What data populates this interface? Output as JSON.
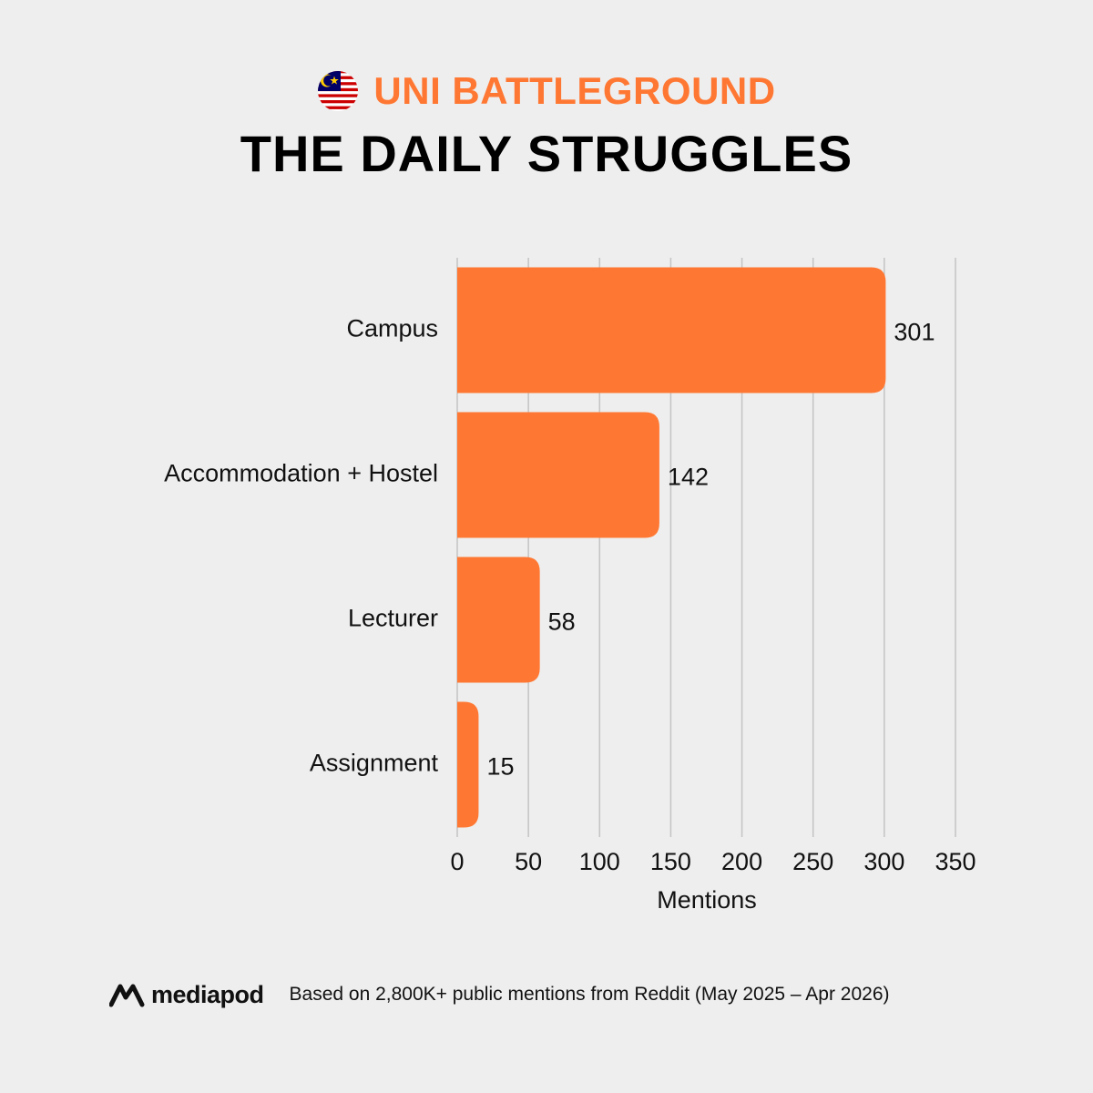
{
  "header": {
    "kicker": "UNI BATTLEGROUND",
    "title": "THE DAILY STRUGGLES",
    "flag_icon": "malaysia-flag-icon"
  },
  "colors": {
    "accent": "#ff7833",
    "background": "#eeeeee",
    "grid": "#c4c4c4",
    "text": "#111111"
  },
  "chart_data": {
    "type": "bar",
    "orientation": "horizontal",
    "categories": [
      "Campus",
      "Accommodation + Hostel",
      "Lecturer",
      "Assignment"
    ],
    "values": [
      301,
      142,
      58,
      15
    ],
    "data_labels": [
      "301",
      "142",
      "58",
      "15"
    ],
    "xlabel": "Mentions",
    "xlim": [
      0,
      350
    ],
    "xticks": [
      0,
      50,
      100,
      150,
      200,
      250,
      300,
      350
    ],
    "grid": "vertical",
    "legend": "none"
  },
  "footer": {
    "brand": "mediapod",
    "brand_icon": "mediapod-logo-icon",
    "source": "Based on 2,800K+ public mentions from Reddit (May 2025 – Apr 2026)"
  }
}
